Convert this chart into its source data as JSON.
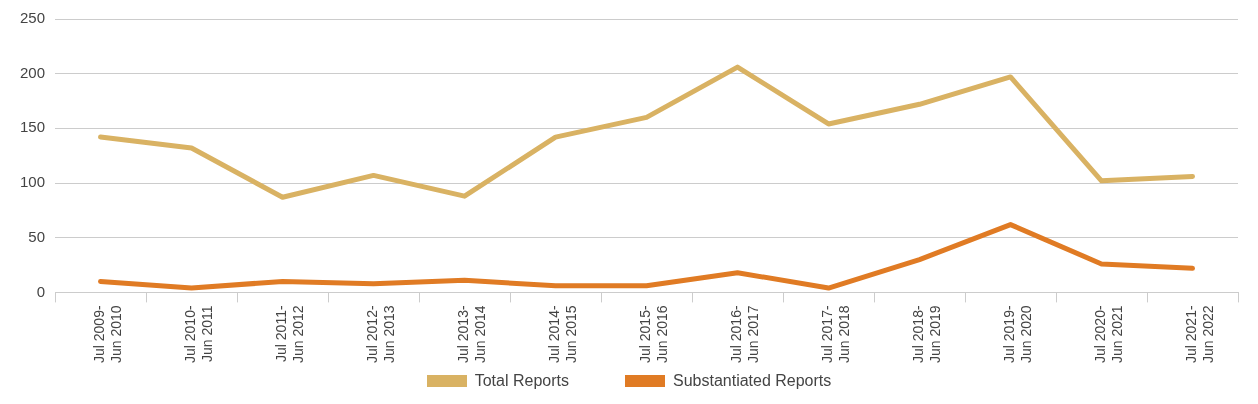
{
  "chart_data": {
    "type": "line",
    "categories": [
      "Jul 2009-\nJun 2010",
      "Jul 2010-\nJun 2011",
      "Jul 2011-\nJun 2012",
      "Jul 2012-\nJun 2013",
      "Jul 2013-\nJun 2014",
      "Jul 2014-\nJun 2015",
      "Jul 2015-\nJun 2016",
      "Jul 2016-\nJun 2017",
      "Jul 2017-\nJun 2018",
      "Jul 2018-\nJun 2019",
      "Jul 2019-\nJun 2020",
      "Jul 2020-\nJun 2021",
      "Jul 2021-\nJun 2022"
    ],
    "series": [
      {
        "name": "Total Reports",
        "color": "#d9b263",
        "values": [
          142,
          132,
          87,
          107,
          88,
          142,
          160,
          206,
          154,
          172,
          197,
          102,
          106
        ]
      },
      {
        "name": "Substantiated Reports",
        "color": "#e07b24",
        "values": [
          10,
          4,
          10,
          8,
          11,
          6,
          6,
          18,
          4,
          30,
          62,
          26,
          22
        ]
      }
    ],
    "ylim": [
      0,
      250
    ],
    "yticks": [
      0,
      50,
      100,
      150,
      200,
      250
    ],
    "grid": "y",
    "legend": "bottom",
    "marker": "none",
    "line_style": "solid"
  }
}
